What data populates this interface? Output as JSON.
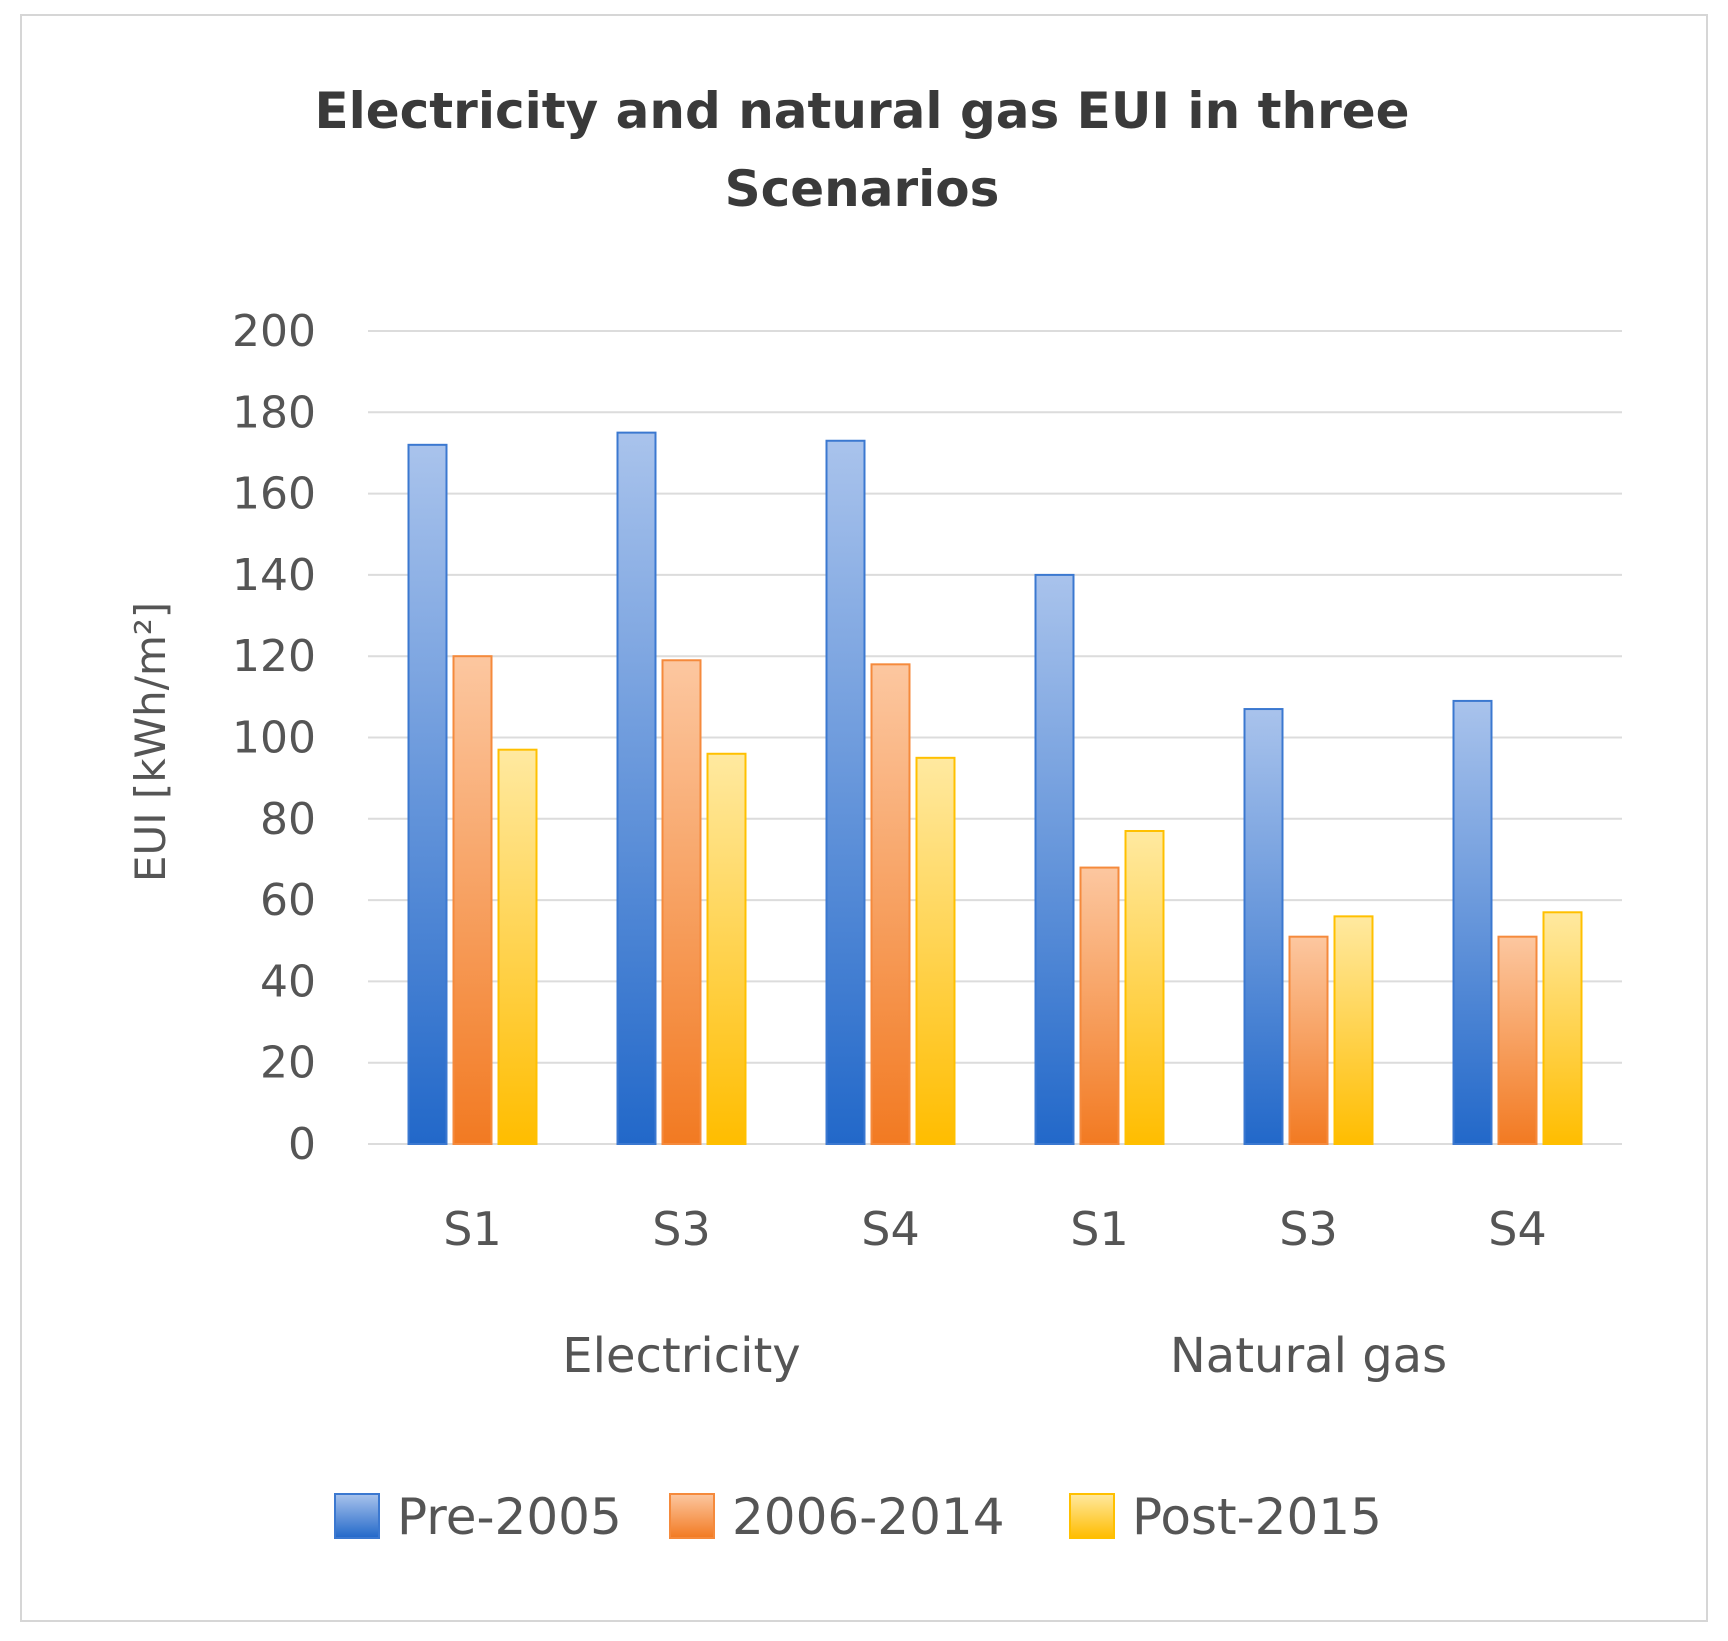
{
  "chart_data": {
    "type": "bar",
    "title_lines": [
      "Electricity and natural gas EUI in three",
      "Scenarios"
    ],
    "ylabel": "EUI [kWh/m²]",
    "xlabel": "",
    "ylim": [
      0,
      200
    ],
    "yticks": [
      0,
      20,
      40,
      60,
      80,
      100,
      120,
      140,
      160,
      180,
      200
    ],
    "categories": [
      "S1",
      "S3",
      "S4",
      "S1",
      "S3",
      "S4"
    ],
    "groups": [
      "Electricity",
      "Natural gas"
    ],
    "group_sizes": [
      3,
      3
    ],
    "grid": true,
    "legend_position": "bottom",
    "series": [
      {
        "name": "Pre-2005",
        "values": [
          172,
          175,
          173,
          140,
          107,
          109
        ],
        "color": "#3b78d0"
      },
      {
        "name": "2006-2014",
        "values": [
          120,
          119,
          118,
          68,
          51,
          51
        ],
        "color": "#f58a3c"
      },
      {
        "name": "Post-2015",
        "values": [
          97,
          96,
          95,
          77,
          56,
          57
        ],
        "color": "#ffc000"
      }
    ]
  }
}
